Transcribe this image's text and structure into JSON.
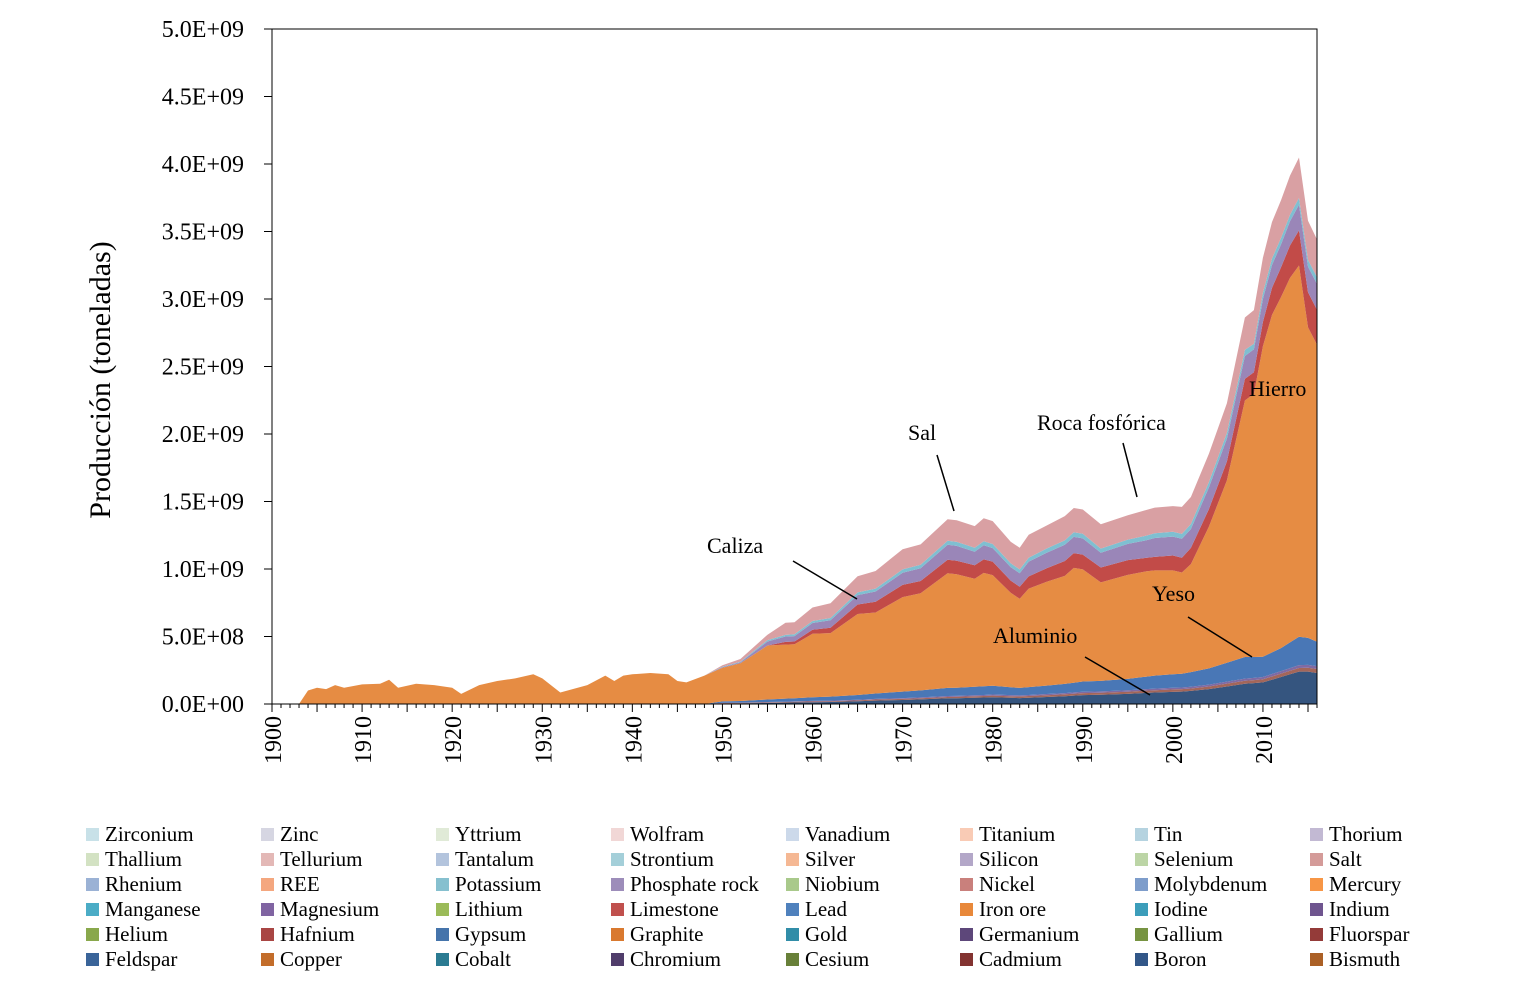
{
  "chart_data": {
    "type": "area",
    "stacked": true,
    "xlabel": "",
    "ylabel": "Producción  (toneladas)",
    "xlim": [
      1900,
      2016
    ],
    "ylim": [
      0,
      5000000000
    ],
    "x_ticks": [
      "1900",
      "1910",
      "1920",
      "1930",
      "1940",
      "1950",
      "1960",
      "1970",
      "1980",
      "1990",
      "2000",
      "2010"
    ],
    "y_ticks": [
      "0.0E+00",
      "5.0E+08",
      "1.0E+09",
      "1.5E+09",
      "2.0E+09",
      "2.5E+09",
      "3.0E+09",
      "3.5E+09",
      "4.0E+09",
      "4.5E+09",
      "5.0E+09"
    ],
    "grid": false,
    "legend_position": "bottom",
    "x": [
      1900,
      1903,
      1904,
      1905,
      1906,
      1907,
      1908,
      1910,
      1912,
      1913,
      1914,
      1916,
      1918,
      1920,
      1921,
      1923,
      1925,
      1927,
      1929,
      1930,
      1932,
      1935,
      1937,
      1938,
      1939,
      1940,
      1942,
      1944,
      1945,
      1946,
      1948,
      1950,
      1952,
      1955,
      1957,
      1958,
      1960,
      1962,
      1965,
      1967,
      1970,
      1972,
      1975,
      1976,
      1978,
      1979,
      1980,
      1982,
      1983,
      1984,
      1986,
      1988,
      1989,
      1990,
      1992,
      1995,
      1997,
      1998,
      2000,
      2001,
      2002,
      2004,
      2006,
      2008,
      2009,
      2010,
      2011,
      2012,
      2013,
      2014,
      2015,
      2016
    ],
    "series": [
      {
        "name": "Boron",
        "color": "#35557f",
        "values": [
          0,
          0,
          0,
          0,
          0,
          0,
          0,
          0,
          0,
          0,
          0,
          0,
          0,
          0,
          0,
          0,
          0,
          0,
          0,
          0,
          0,
          0,
          0,
          0,
          0,
          0,
          0,
          0,
          0,
          0,
          0,
          0.004,
          0.005,
          0.008,
          0.01,
          0.011,
          0.013,
          0.015,
          0.02,
          0.025,
          0.03,
          0.034,
          0.042,
          0.043,
          0.046,
          0.048,
          0.05,
          0.046,
          0.044,
          0.047,
          0.052,
          0.058,
          0.062,
          0.066,
          0.068,
          0.075,
          0.082,
          0.085,
          0.09,
          0.092,
          0.097,
          0.11,
          0.13,
          0.15,
          0.155,
          0.16,
          0.18,
          0.2,
          0.22,
          0.24,
          0.24,
          0.23
        ]
      },
      {
        "name": "Copper",
        "color": "#a3665a",
        "values": [
          0,
          0,
          0,
          0,
          0,
          0,
          0,
          0,
          0,
          0,
          0,
          0,
          0,
          0,
          0,
          0,
          0,
          0,
          0,
          0,
          0,
          0,
          0,
          0,
          0,
          0,
          0,
          0,
          0,
          0,
          0,
          0.003,
          0.003,
          0.004,
          0.005,
          0.005,
          0.006,
          0.006,
          0.007,
          0.008,
          0.008,
          0.009,
          0.01,
          0.01,
          0.011,
          0.011,
          0.012,
          0.012,
          0.012,
          0.012,
          0.013,
          0.014,
          0.014,
          0.015,
          0.015,
          0.016,
          0.017,
          0.017,
          0.018,
          0.018,
          0.018,
          0.02,
          0.021,
          0.022,
          0.022,
          0.023,
          0.024,
          0.025,
          0.026,
          0.027,
          0.028,
          0.029
        ]
      },
      {
        "name": "Magnesium",
        "color": "#7f6aa3",
        "values": [
          0,
          0,
          0,
          0,
          0,
          0,
          0,
          0,
          0,
          0,
          0,
          0,
          0,
          0,
          0,
          0,
          0,
          0,
          0,
          0,
          0,
          0,
          0,
          0,
          0,
          0,
          0,
          0,
          0,
          0,
          0,
          0.002,
          0.002,
          0.003,
          0.003,
          0.003,
          0.004,
          0.004,
          0.005,
          0.005,
          0.006,
          0.006,
          0.007,
          0.007,
          0.008,
          0.008,
          0.008,
          0.008,
          0.008,
          0.008,
          0.009,
          0.009,
          0.01,
          0.01,
          0.01,
          0.011,
          0.011,
          0.012,
          0.012,
          0.012,
          0.013,
          0.014,
          0.015,
          0.016,
          0.016,
          0.017,
          0.018,
          0.019,
          0.02,
          0.021,
          0.022,
          0.022
        ]
      },
      {
        "name": "Aluminio",
        "color": "#4977b6",
        "values": [
          0,
          0,
          0,
          0,
          0,
          0,
          0,
          0,
          0,
          0,
          0,
          0,
          0,
          0,
          0,
          0,
          0,
          0,
          0,
          0,
          0,
          0,
          0,
          0,
          0,
          0,
          0,
          0,
          0,
          0,
          0,
          0.01,
          0.012,
          0.018,
          0.022,
          0.024,
          0.027,
          0.03,
          0.035,
          0.04,
          0.048,
          0.052,
          0.06,
          0.061,
          0.063,
          0.064,
          0.065,
          0.058,
          0.055,
          0.058,
          0.062,
          0.068,
          0.072,
          0.076,
          0.078,
          0.084,
          0.092,
          0.096,
          0.1,
          0.102,
          0.108,
          0.12,
          0.14,
          0.16,
          0.155,
          0.15,
          0.16,
          0.17,
          0.19,
          0.21,
          0.2,
          0.18
        ]
      },
      {
        "name": "Hierro",
        "color": "#e68c43",
        "values": [
          0,
          0,
          0.1,
          0.12,
          0.11,
          0.14,
          0.12,
          0.145,
          0.15,
          0.18,
          0.12,
          0.15,
          0.14,
          0.12,
          0.075,
          0.14,
          0.17,
          0.19,
          0.22,
          0.19,
          0.085,
          0.14,
          0.21,
          0.17,
          0.21,
          0.22,
          0.23,
          0.22,
          0.17,
          0.16,
          0.21,
          0.25,
          0.28,
          0.4,
          0.4,
          0.4,
          0.47,
          0.47,
          0.6,
          0.6,
          0.7,
          0.72,
          0.85,
          0.84,
          0.8,
          0.84,
          0.82,
          0.7,
          0.66,
          0.73,
          0.77,
          0.8,
          0.85,
          0.83,
          0.73,
          0.77,
          0.78,
          0.78,
          0.77,
          0.75,
          0.8,
          1.05,
          1.35,
          1.9,
          1.95,
          2.3,
          2.5,
          2.6,
          2.7,
          2.75,
          2.3,
          2.2
        ]
      },
      {
        "name": "Caliza",
        "color": "#c24b48",
        "values": [
          0,
          0,
          0,
          0,
          0,
          0,
          0,
          0,
          0,
          0,
          0,
          0,
          0,
          0,
          0,
          0,
          0,
          0,
          0,
          0,
          0,
          0,
          0,
          0,
          0,
          0,
          0,
          0,
          0,
          0,
          0,
          0,
          0,
          0,
          0.02,
          0.02,
          0.03,
          0.04,
          0.07,
          0.08,
          0.09,
          0.09,
          0.1,
          0.1,
          0.1,
          0.1,
          0.1,
          0.09,
          0.09,
          0.09,
          0.1,
          0.11,
          0.11,
          0.11,
          0.11,
          0.11,
          0.1,
          0.1,
          0.11,
          0.11,
          0.12,
          0.13,
          0.14,
          0.16,
          0.16,
          0.18,
          0.2,
          0.22,
          0.24,
          0.26,
          0.26,
          0.26
        ]
      },
      {
        "name": "Roca fosfórica",
        "color": "#9a86b8",
        "values": [
          0,
          0,
          0,
          0,
          0,
          0,
          0,
          0,
          0,
          0,
          0,
          0,
          0,
          0,
          0,
          0,
          0,
          0,
          0,
          0,
          0,
          0,
          0,
          0,
          0,
          0,
          0,
          0,
          0,
          0,
          0,
          0.004,
          0.006,
          0.03,
          0.04,
          0.04,
          0.05,
          0.055,
          0.07,
          0.075,
          0.09,
          0.095,
          0.11,
          0.11,
          0.1,
          0.105,
          0.1,
          0.1,
          0.1,
          0.11,
          0.115,
          0.12,
          0.12,
          0.12,
          0.11,
          0.12,
          0.13,
          0.14,
          0.14,
          0.14,
          0.14,
          0.16,
          0.17,
          0.17,
          0.17,
          0.17,
          0.17,
          0.17,
          0.18,
          0.19,
          0.19,
          0.19
        ]
      },
      {
        "name": "Potassium",
        "color": "#7fbfd1",
        "values": [
          0,
          0,
          0,
          0,
          0,
          0,
          0,
          0,
          0,
          0,
          0,
          0,
          0,
          0,
          0,
          0,
          0,
          0,
          0,
          0,
          0,
          0,
          0,
          0,
          0,
          0,
          0,
          0,
          0,
          0,
          0,
          0.004,
          0.005,
          0.01,
          0.012,
          0.013,
          0.015,
          0.017,
          0.02,
          0.022,
          0.025,
          0.026,
          0.03,
          0.03,
          0.03,
          0.03,
          0.03,
          0.028,
          0.028,
          0.029,
          0.031,
          0.033,
          0.034,
          0.034,
          0.03,
          0.032,
          0.034,
          0.035,
          0.036,
          0.036,
          0.037,
          0.04,
          0.042,
          0.045,
          0.04,
          0.045,
          0.048,
          0.048,
          0.048,
          0.05,
          0.05,
          0.05
        ]
      },
      {
        "name": "Sal",
        "color": "#d9a0a3",
        "values": [
          0,
          0,
          0,
          0,
          0,
          0,
          0,
          0,
          0,
          0,
          0,
          0,
          0,
          0,
          0,
          0,
          0,
          0,
          0,
          0,
          0,
          0,
          0,
          0,
          0,
          0,
          0,
          0,
          0,
          0,
          0,
          0.01,
          0.02,
          0.04,
          0.09,
          0.09,
          0.1,
          0.11,
          0.12,
          0.13,
          0.15,
          0.15,
          0.16,
          0.16,
          0.16,
          0.17,
          0.17,
          0.16,
          0.16,
          0.17,
          0.17,
          0.18,
          0.18,
          0.18,
          0.18,
          0.18,
          0.19,
          0.19,
          0.19,
          0.2,
          0.2,
          0.21,
          0.22,
          0.24,
          0.25,
          0.26,
          0.27,
          0.28,
          0.29,
          0.3,
          0.29,
          0.28
        ]
      }
    ],
    "annotations": [
      {
        "text": "Caliza",
        "x": 1965,
        "y": 0.78
      },
      {
        "text": "Sal",
        "x": 1976,
        "y": 1.43
      },
      {
        "text": "Roca fosfórica",
        "x": 1996,
        "y": 1.52
      },
      {
        "text": "Hierro",
        "x": 2013,
        "y": 2.35
      },
      {
        "text": "Yeso",
        "x": 2009,
        "y": 0.36
      },
      {
        "text": "Aluminio",
        "x": 1998,
        "y": 0.06
      }
    ],
    "legend": [
      {
        "name": "Zirconium",
        "color": "#c8e1e8"
      },
      {
        "name": "Zinc",
        "color": "#d6d6e2"
      },
      {
        "name": "Yttrium",
        "color": "#e0ead7"
      },
      {
        "name": "Wolfram",
        "color": "#f1d7d6"
      },
      {
        "name": "Vanadium",
        "color": "#ccd9ea"
      },
      {
        "name": "Titanium",
        "color": "#f9cbb5"
      },
      {
        "name": "Tin",
        "color": "#b5d3e0"
      },
      {
        "name": "Thorium",
        "color": "#c2b9d3"
      },
      {
        "name": "Thallium",
        "color": "#d3e2c3"
      },
      {
        "name": "Tellurium",
        "color": "#e3b8b6"
      },
      {
        "name": "Tantalum",
        "color": "#b3c4dd"
      },
      {
        "name": "Strontium",
        "color": "#a4cfd9"
      },
      {
        "name": "Silver",
        "color": "#f5b894"
      },
      {
        "name": "Silicon",
        "color": "#b3a7c8"
      },
      {
        "name": "Selenium",
        "color": "#bcd5a6"
      },
      {
        "name": "Salt",
        "color": "#d49b99"
      },
      {
        "name": "Rhenium",
        "color": "#9bb2d5"
      },
      {
        "name": "REE",
        "color": "#f4a77f"
      },
      {
        "name": "Potassium",
        "color": "#86c0cf"
      },
      {
        "name": "Phosphate rock",
        "color": "#9d8dba"
      },
      {
        "name": "Niobium",
        "color": "#a9c98b"
      },
      {
        "name": "Nickel",
        "color": "#c9807c"
      },
      {
        "name": "Molybdenum",
        "color": "#7e9dcb"
      },
      {
        "name": "Mercury",
        "color": "#f79646"
      },
      {
        "name": "Manganese",
        "color": "#4bacc6"
      },
      {
        "name": "Magnesium",
        "color": "#8064a2"
      },
      {
        "name": "Lithium",
        "color": "#9bbb59"
      },
      {
        "name": "Limestone",
        "color": "#c0504d"
      },
      {
        "name": "Lead",
        "color": "#4f81bd"
      },
      {
        "name": "Iron ore",
        "color": "#e8883a"
      },
      {
        "name": "Iodine",
        "color": "#3c9dba"
      },
      {
        "name": "Indium",
        "color": "#6f558f"
      },
      {
        "name": "Helium",
        "color": "#89a84c"
      },
      {
        "name": "Hafnium",
        "color": "#a94644"
      },
      {
        "name": "Gypsum",
        "color": "#4574ab"
      },
      {
        "name": "Graphite",
        "color": "#d9792f"
      },
      {
        "name": "Gold",
        "color": "#318da8"
      },
      {
        "name": "Germanium",
        "color": "#5d477a"
      },
      {
        "name": "Gallium",
        "color": "#779442"
      },
      {
        "name": "Fluorspar",
        "color": "#943b39"
      },
      {
        "name": "Feldspar",
        "color": "#3a6499"
      },
      {
        "name": "Copper",
        "color": "#c36d2a"
      },
      {
        "name": "Cobalt",
        "color": "#2b7b92"
      },
      {
        "name": "Chromium",
        "color": "#503d6b"
      },
      {
        "name": "Cesium",
        "color": "#688039"
      },
      {
        "name": "Cadmium",
        "color": "#833331"
      },
      {
        "name": "Boron",
        "color": "#325788"
      },
      {
        "name": "Bismuth",
        "color": "#ab6026"
      }
    ]
  }
}
